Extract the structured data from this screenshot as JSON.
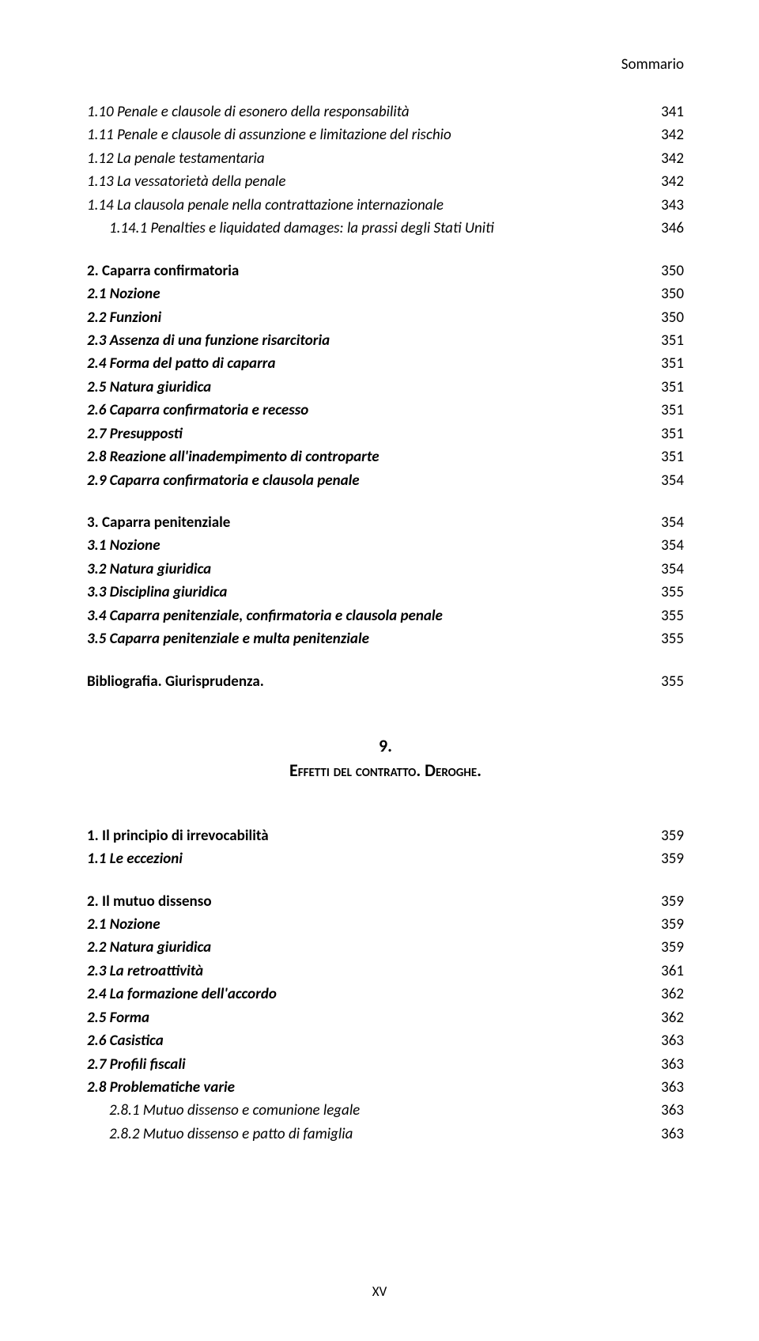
{
  "header": {
    "label": "Sommario"
  },
  "footer": {
    "page": "XV"
  },
  "group1": [
    {
      "label": "1.10 Penale e clausole di esonero della responsabilità",
      "page": "341",
      "style": "italic"
    },
    {
      "label": "1.11 Penale e clausole di assunzione e limitazione del rischio",
      "page": "342",
      "style": "italic"
    },
    {
      "label": "1.12 La penale testamentaria",
      "page": "342",
      "style": "italic"
    },
    {
      "label": "1.13 La vessatorietà della penale",
      "page": "342",
      "style": "italic"
    },
    {
      "label": "1.14 La clausola penale nella contrattazione internazionale",
      "page": "343",
      "style": "italic"
    },
    {
      "label": "1.14.1 Penalties e liquidated damages: la prassi degli Stati Uniti",
      "page": "346",
      "style": "italic",
      "indent": 1
    }
  ],
  "group2": [
    {
      "label": "2. Caparra confirmatoria",
      "page": "350",
      "style": "bold"
    },
    {
      "label": "2.1 Nozione",
      "page": "350",
      "style": "italic bold"
    },
    {
      "label": "2.2 Funzioni",
      "page": "350",
      "style": "italic bold"
    },
    {
      "label": "2.3 Assenza di una funzione risarcitoria",
      "page": "351",
      "style": "italic bold"
    },
    {
      "label": "2.4 Forma del patto di caparra",
      "page": "351",
      "style": "italic bold"
    },
    {
      "label": "2.5 Natura giuridica",
      "page": "351",
      "style": "italic bold"
    },
    {
      "label": "2.6 Caparra confirmatoria e recesso",
      "page": "351",
      "style": "italic bold"
    },
    {
      "label": "2.7 Presupposti",
      "page": "351",
      "style": "italic bold"
    },
    {
      "label": "2.8 Reazione all'inadempimento di controparte",
      "page": "351",
      "style": "italic bold"
    },
    {
      "label": "2.9 Caparra confirmatoria e clausola penale",
      "page": "354",
      "style": "italic bold"
    }
  ],
  "group3": [
    {
      "label": "3. Caparra penitenziale",
      "page": "354",
      "style": "bold"
    },
    {
      "label": "3.1 Nozione",
      "page": "354",
      "style": "italic bold"
    },
    {
      "label": "3.2 Natura giuridica",
      "page": "354",
      "style": "italic bold"
    },
    {
      "label": "3.3 Disciplina giuridica",
      "page": "355",
      "style": "italic bold"
    },
    {
      "label": "3.4 Caparra penitenziale, confirmatoria e clausola penale",
      "page": "355",
      "style": "italic bold"
    },
    {
      "label": "3.5 Caparra penitenziale e multa penitenziale",
      "page": "355",
      "style": "italic bold"
    }
  ],
  "group4": [
    {
      "label": "Bibliografia. Giurisprudenza.",
      "page": "355",
      "style": "bold"
    }
  ],
  "chapter": {
    "num": "9.",
    "title": "Effetti del contratto. Deroghe."
  },
  "group5": [
    {
      "label": "1. Il principio di irrevocabilità",
      "page": "359",
      "style": "bold"
    },
    {
      "label": "1.1 Le eccezioni",
      "page": "359",
      "style": "italic bold"
    }
  ],
  "group6": [
    {
      "label": "2. Il mutuo dissenso",
      "page": "359",
      "style": "bold"
    },
    {
      "label": "2.1 Nozione",
      "page": "359",
      "style": "italic bold"
    },
    {
      "label": "2.2 Natura giuridica",
      "page": "359",
      "style": "italic bold"
    },
    {
      "label": "2.3 La retroattività",
      "page": "361",
      "style": "italic bold"
    },
    {
      "label": "2.4 La formazione dell'accordo",
      "page": "362",
      "style": "italic bold"
    },
    {
      "label": "2.5 Forma",
      "page": "362",
      "style": "italic bold"
    },
    {
      "label": "2.6 Casistica",
      "page": "363",
      "style": "italic bold"
    },
    {
      "label": "2.7 Profili fiscali",
      "page": "363",
      "style": "italic bold"
    },
    {
      "label": "2.8 Problematiche varie",
      "page": "363",
      "style": "italic bold"
    },
    {
      "label": "2.8.1 Mutuo dissenso e comunione legale",
      "page": "363",
      "style": "italic",
      "indent": 1
    },
    {
      "label": "2.8.2 Mutuo dissenso e patto di famiglia",
      "page": "363",
      "style": "italic",
      "indent": 1
    }
  ]
}
